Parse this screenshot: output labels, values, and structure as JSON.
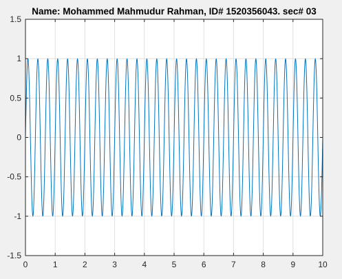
{
  "chart_data": {
    "type": "line",
    "title": "Name: Mohammed Mahmudur Rahman, ID# 1520356043. sec# 03",
    "xlabel": "",
    "ylabel": "",
    "xlim": [
      0,
      10
    ],
    "ylim": [
      -1.5,
      1.5
    ],
    "x_ticks": [
      "0",
      "1",
      "2",
      "3",
      "4",
      "5",
      "6",
      "7",
      "8",
      "9",
      "10"
    ],
    "y_ticks": [
      "1.5",
      "1",
      "0.5",
      "0",
      "-0.5",
      "-1",
      "-1.5"
    ],
    "y_tick_values": [
      1.5,
      1,
      0.5,
      0,
      -0.5,
      -1,
      -1.5
    ],
    "grid": true,
    "series": [
      {
        "description": "sinusoid, amplitude 1, frequency 3 Hz, sampled at t = 0:0.01:10",
        "amplitude": 1,
        "frequency_hz": 3,
        "x_start": 0,
        "x_end": 10,
        "x_step": 0.01,
        "color": "#0072bd"
      }
    ]
  },
  "colors": {
    "figure_background": "#f0f0f0",
    "axes_background": "#ffffff",
    "grid": "#dfdfdf",
    "axis": "#262626",
    "line": "#0072bd"
  }
}
